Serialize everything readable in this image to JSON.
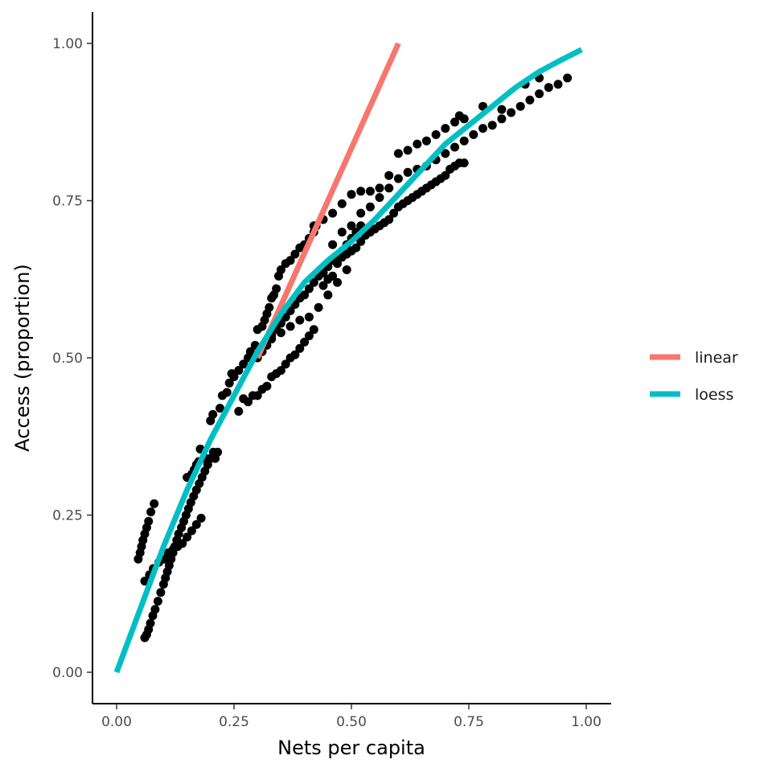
{
  "chart_data": {
    "type": "scatter",
    "xlabel": "Nets per capita",
    "ylabel": "Access (proportion)",
    "xlim": [
      -0.05,
      1.05
    ],
    "ylim": [
      -0.05,
      1.05
    ],
    "x_ticks": [
      0.0,
      0.25,
      0.5,
      0.75,
      1.0
    ],
    "x_tick_labels": [
      "0.00",
      "0.25",
      "0.50",
      "0.75",
      "1.00"
    ],
    "y_ticks": [
      0.0,
      0.25,
      0.5,
      0.75,
      1.0
    ],
    "y_tick_labels": [
      "0.00",
      "0.25",
      "0.50",
      "0.75",
      "1.00"
    ],
    "grid": false,
    "legend_position": "right",
    "series": [
      {
        "name": "points",
        "color": "#000000",
        "points": [
          [
            0.046,
            0.18
          ],
          [
            0.05,
            0.19
          ],
          [
            0.053,
            0.2
          ],
          [
            0.056,
            0.21
          ],
          [
            0.06,
            0.22
          ],
          [
            0.064,
            0.23
          ],
          [
            0.068,
            0.24
          ],
          [
            0.073,
            0.255
          ],
          [
            0.08,
            0.268
          ],
          [
            0.06,
            0.055
          ],
          [
            0.064,
            0.06
          ],
          [
            0.068,
            0.068
          ],
          [
            0.072,
            0.078
          ],
          [
            0.077,
            0.09
          ],
          [
            0.082,
            0.1
          ],
          [
            0.088,
            0.113
          ],
          [
            0.094,
            0.127
          ],
          [
            0.1,
            0.14
          ],
          [
            0.104,
            0.15
          ],
          [
            0.108,
            0.16
          ],
          [
            0.112,
            0.17
          ],
          [
            0.116,
            0.18
          ],
          [
            0.12,
            0.19
          ],
          [
            0.124,
            0.2
          ],
          [
            0.128,
            0.21
          ],
          [
            0.132,
            0.22
          ],
          [
            0.138,
            0.23
          ],
          [
            0.143,
            0.24
          ],
          [
            0.148,
            0.25
          ],
          [
            0.153,
            0.26
          ],
          [
            0.158,
            0.27
          ],
          [
            0.164,
            0.28
          ],
          [
            0.17,
            0.29
          ],
          [
            0.176,
            0.3
          ],
          [
            0.182,
            0.31
          ],
          [
            0.188,
            0.32
          ],
          [
            0.194,
            0.33
          ],
          [
            0.2,
            0.34
          ],
          [
            0.206,
            0.35
          ],
          [
            0.21,
            0.34
          ],
          [
            0.215,
            0.35
          ],
          [
            0.06,
            0.145
          ],
          [
            0.07,
            0.155
          ],
          [
            0.078,
            0.165
          ],
          [
            0.09,
            0.175
          ],
          [
            0.1,
            0.18
          ],
          [
            0.11,
            0.19
          ],
          [
            0.12,
            0.195
          ],
          [
            0.13,
            0.2
          ],
          [
            0.14,
            0.205
          ],
          [
            0.15,
            0.215
          ],
          [
            0.16,
            0.225
          ],
          [
            0.17,
            0.235
          ],
          [
            0.18,
            0.245
          ],
          [
            0.15,
            0.31
          ],
          [
            0.16,
            0.315
          ],
          [
            0.165,
            0.322
          ],
          [
            0.17,
            0.33
          ],
          [
            0.175,
            0.335
          ],
          [
            0.178,
            0.355
          ],
          [
            0.19,
            0.34
          ],
          [
            0.2,
            0.4
          ],
          [
            0.205,
            0.41
          ],
          [
            0.22,
            0.42
          ],
          [
            0.225,
            0.44
          ],
          [
            0.235,
            0.445
          ],
          [
            0.24,
            0.46
          ],
          [
            0.245,
            0.475
          ],
          [
            0.25,
            0.47
          ],
          [
            0.26,
            0.48
          ],
          [
            0.27,
            0.49
          ],
          [
            0.28,
            0.5
          ],
          [
            0.285,
            0.51
          ],
          [
            0.295,
            0.52
          ],
          [
            0.3,
            0.545
          ],
          [
            0.31,
            0.55
          ],
          [
            0.315,
            0.56
          ],
          [
            0.32,
            0.57
          ],
          [
            0.325,
            0.58
          ],
          [
            0.33,
            0.595
          ],
          [
            0.335,
            0.6
          ],
          [
            0.34,
            0.61
          ],
          [
            0.345,
            0.63
          ],
          [
            0.35,
            0.64
          ],
          [
            0.36,
            0.65
          ],
          [
            0.37,
            0.655
          ],
          [
            0.38,
            0.665
          ],
          [
            0.39,
            0.675
          ],
          [
            0.4,
            0.68
          ],
          [
            0.41,
            0.69
          ],
          [
            0.42,
            0.7
          ],
          [
            0.425,
            0.71
          ],
          [
            0.26,
            0.415
          ],
          [
            0.27,
            0.435
          ],
          [
            0.28,
            0.43
          ],
          [
            0.29,
            0.44
          ],
          [
            0.3,
            0.44
          ],
          [
            0.31,
            0.45
          ],
          [
            0.32,
            0.455
          ],
          [
            0.33,
            0.47
          ],
          [
            0.34,
            0.475
          ],
          [
            0.35,
            0.48
          ],
          [
            0.36,
            0.49
          ],
          [
            0.37,
            0.5
          ],
          [
            0.38,
            0.505
          ],
          [
            0.39,
            0.515
          ],
          [
            0.4,
            0.525
          ],
          [
            0.41,
            0.535
          ],
          [
            0.42,
            0.545
          ],
          [
            0.3,
            0.5
          ],
          [
            0.31,
            0.51
          ],
          [
            0.32,
            0.52
          ],
          [
            0.33,
            0.535
          ],
          [
            0.34,
            0.545
          ],
          [
            0.35,
            0.555
          ],
          [
            0.36,
            0.565
          ],
          [
            0.37,
            0.575
          ],
          [
            0.38,
            0.585
          ],
          [
            0.39,
            0.595
          ],
          [
            0.4,
            0.6
          ],
          [
            0.41,
            0.61
          ],
          [
            0.42,
            0.62
          ],
          [
            0.43,
            0.63
          ],
          [
            0.44,
            0.635
          ],
          [
            0.45,
            0.645
          ],
          [
            0.46,
            0.655
          ],
          [
            0.47,
            0.66
          ],
          [
            0.48,
            0.67
          ],
          [
            0.49,
            0.68
          ],
          [
            0.5,
            0.69
          ],
          [
            0.51,
            0.7
          ],
          [
            0.52,
            0.71
          ],
          [
            0.33,
            0.53
          ],
          [
            0.35,
            0.54
          ],
          [
            0.37,
            0.55
          ],
          [
            0.39,
            0.56
          ],
          [
            0.41,
            0.565
          ],
          [
            0.43,
            0.58
          ],
          [
            0.45,
            0.6
          ],
          [
            0.47,
            0.62
          ],
          [
            0.49,
            0.64
          ],
          [
            0.44,
            0.615
          ],
          [
            0.45,
            0.625
          ],
          [
            0.46,
            0.63
          ],
          [
            0.47,
            0.65
          ],
          [
            0.48,
            0.66
          ],
          [
            0.49,
            0.665
          ],
          [
            0.5,
            0.67
          ],
          [
            0.51,
            0.675
          ],
          [
            0.52,
            0.685
          ],
          [
            0.53,
            0.695
          ],
          [
            0.54,
            0.7
          ],
          [
            0.55,
            0.705
          ],
          [
            0.56,
            0.71
          ],
          [
            0.57,
            0.715
          ],
          [
            0.58,
            0.72
          ],
          [
            0.59,
            0.73
          ],
          [
            0.6,
            0.74
          ],
          [
            0.61,
            0.745
          ],
          [
            0.62,
            0.75
          ],
          [
            0.63,
            0.755
          ],
          [
            0.64,
            0.76
          ],
          [
            0.65,
            0.765
          ],
          [
            0.66,
            0.77
          ],
          [
            0.67,
            0.775
          ],
          [
            0.68,
            0.78
          ],
          [
            0.69,
            0.785
          ],
          [
            0.7,
            0.79
          ],
          [
            0.71,
            0.8
          ],
          [
            0.72,
            0.805
          ],
          [
            0.73,
            0.81
          ],
          [
            0.74,
            0.81
          ],
          [
            0.42,
            0.71
          ],
          [
            0.44,
            0.72
          ],
          [
            0.46,
            0.73
          ],
          [
            0.48,
            0.745
          ],
          [
            0.5,
            0.76
          ],
          [
            0.52,
            0.765
          ],
          [
            0.54,
            0.765
          ],
          [
            0.56,
            0.77
          ],
          [
            0.58,
            0.79
          ],
          [
            0.6,
            0.825
          ],
          [
            0.62,
            0.83
          ],
          [
            0.64,
            0.84
          ],
          [
            0.66,
            0.845
          ],
          [
            0.68,
            0.855
          ],
          [
            0.7,
            0.865
          ],
          [
            0.72,
            0.875
          ],
          [
            0.73,
            0.885
          ],
          [
            0.74,
            0.88
          ],
          [
            0.46,
            0.68
          ],
          [
            0.48,
            0.7
          ],
          [
            0.5,
            0.71
          ],
          [
            0.52,
            0.73
          ],
          [
            0.54,
            0.74
          ],
          [
            0.56,
            0.755
          ],
          [
            0.58,
            0.77
          ],
          [
            0.6,
            0.785
          ],
          [
            0.62,
            0.795
          ],
          [
            0.64,
            0.8
          ],
          [
            0.66,
            0.805
          ],
          [
            0.68,
            0.815
          ],
          [
            0.7,
            0.825
          ],
          [
            0.72,
            0.835
          ],
          [
            0.74,
            0.845
          ],
          [
            0.76,
            0.855
          ],
          [
            0.78,
            0.865
          ],
          [
            0.8,
            0.87
          ],
          [
            0.82,
            0.88
          ],
          [
            0.84,
            0.89
          ],
          [
            0.86,
            0.9
          ],
          [
            0.88,
            0.91
          ],
          [
            0.9,
            0.92
          ],
          [
            0.92,
            0.93
          ],
          [
            0.94,
            0.935
          ],
          [
            0.96,
            0.945
          ],
          [
            0.78,
            0.9
          ],
          [
            0.82,
            0.895
          ],
          [
            0.87,
            0.935
          ],
          [
            0.9,
            0.945
          ]
        ]
      },
      {
        "name": "linear",
        "color": "#F8766D",
        "points": [
          [
            0.3,
            0.5
          ],
          [
            0.6,
            1.0
          ]
        ]
      },
      {
        "name": "loess",
        "color": "#00BFC4",
        "points": [
          [
            0.0,
            0.0
          ],
          [
            0.05,
            0.1
          ],
          [
            0.1,
            0.2
          ],
          [
            0.15,
            0.29
          ],
          [
            0.2,
            0.37
          ],
          [
            0.25,
            0.44
          ],
          [
            0.3,
            0.51
          ],
          [
            0.35,
            0.57
          ],
          [
            0.4,
            0.62
          ],
          [
            0.45,
            0.655
          ],
          [
            0.5,
            0.685
          ],
          [
            0.55,
            0.72
          ],
          [
            0.6,
            0.76
          ],
          [
            0.65,
            0.8
          ],
          [
            0.7,
            0.84
          ],
          [
            0.75,
            0.87
          ],
          [
            0.8,
            0.9
          ],
          [
            0.85,
            0.93
          ],
          [
            0.9,
            0.955
          ],
          [
            0.95,
            0.975
          ],
          [
            0.99,
            0.99
          ]
        ]
      }
    ],
    "legend": [
      {
        "label": "linear",
        "color": "#F8766D"
      },
      {
        "label": "loess",
        "color": "#00BFC4"
      }
    ]
  }
}
